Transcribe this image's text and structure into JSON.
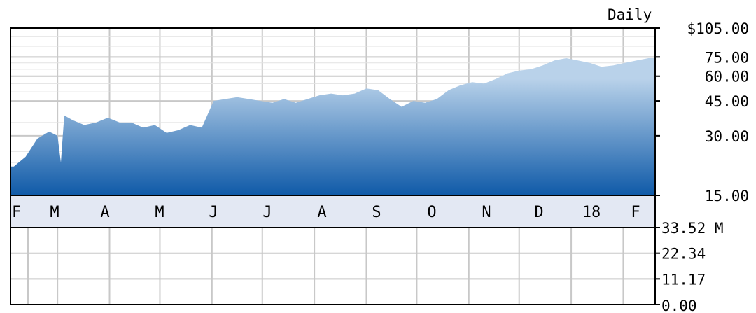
{
  "chart_data": [
    {
      "type": "area",
      "title": "Daily",
      "currency_symbol": "$",
      "y_scale": "log",
      "ylim": [
        15,
        105
      ],
      "y_ticks": [
        "105.00",
        "75.00",
        "60.00",
        "45.00",
        "30.00",
        "15.00"
      ],
      "y_tick_values": [
        105,
        75,
        60,
        45,
        30,
        15
      ],
      "x_tick_labels": [
        "F",
        "M",
        "A",
        "M",
        "J",
        "J",
        "A",
        "S",
        "O",
        "N",
        "D",
        "18",
        "F"
      ],
      "grid": true,
      "colors": {
        "fill_top": "#b9d2ea",
        "fill_bottom": "#0f5aa8",
        "grid": "#c8c8c8",
        "axis_band": "#e3e8f3"
      },
      "series": [
        {
          "x": [
            "2017-02-03",
            "2017-02-10",
            "2017-02-17",
            "2017-02-24",
            "2017-03-01",
            "2017-03-03",
            "2017-03-05",
            "2017-03-10",
            "2017-03-17",
            "2017-03-24",
            "2017-03-31",
            "2017-04-07",
            "2017-04-14",
            "2017-04-21",
            "2017-04-28",
            "2017-05-05",
            "2017-05-12",
            "2017-05-19",
            "2017-05-26",
            "2017-06-02",
            "2017-06-09",
            "2017-06-16",
            "2017-06-23",
            "2017-06-30",
            "2017-07-07",
            "2017-07-14",
            "2017-07-21",
            "2017-07-28",
            "2017-08-04",
            "2017-08-11",
            "2017-08-18",
            "2017-08-25",
            "2017-09-01",
            "2017-09-08",
            "2017-09-15",
            "2017-09-22",
            "2017-09-29",
            "2017-10-06",
            "2017-10-13",
            "2017-10-20",
            "2017-10-27",
            "2017-11-03",
            "2017-11-10",
            "2017-11-17",
            "2017-11-24",
            "2017-12-01",
            "2017-12-08",
            "2017-12-15",
            "2017-12-22",
            "2017-12-29",
            "2018-01-05",
            "2018-01-12",
            "2018-01-19",
            "2018-01-26",
            "2018-02-02",
            "2018-02-09",
            "2018-02-16"
          ],
          "values": [
            21,
            23.5,
            29,
            31.5,
            30,
            22,
            38,
            36,
            34,
            35,
            37,
            35,
            35,
            33,
            34,
            31,
            32,
            34,
            33,
            45,
            46,
            47,
            46,
            45,
            44,
            46,
            44,
            46,
            48,
            49,
            48,
            49,
            52,
            51,
            46,
            42,
            45,
            44,
            46,
            51,
            54,
            56,
            55,
            58,
            62,
            64,
            65,
            68,
            72,
            74,
            72,
            70,
            67,
            68,
            70,
            72,
            74
          ]
        }
      ]
    },
    {
      "type": "bar",
      "title": "",
      "unit": "M",
      "ylim": [
        0,
        33.52
      ],
      "y_ticks": [
        "33.52",
        "22.34",
        "11.17",
        "0.00"
      ],
      "y_tick_values": [
        33.52,
        22.34,
        11.17,
        0.0
      ],
      "grid": true,
      "series": []
    }
  ]
}
